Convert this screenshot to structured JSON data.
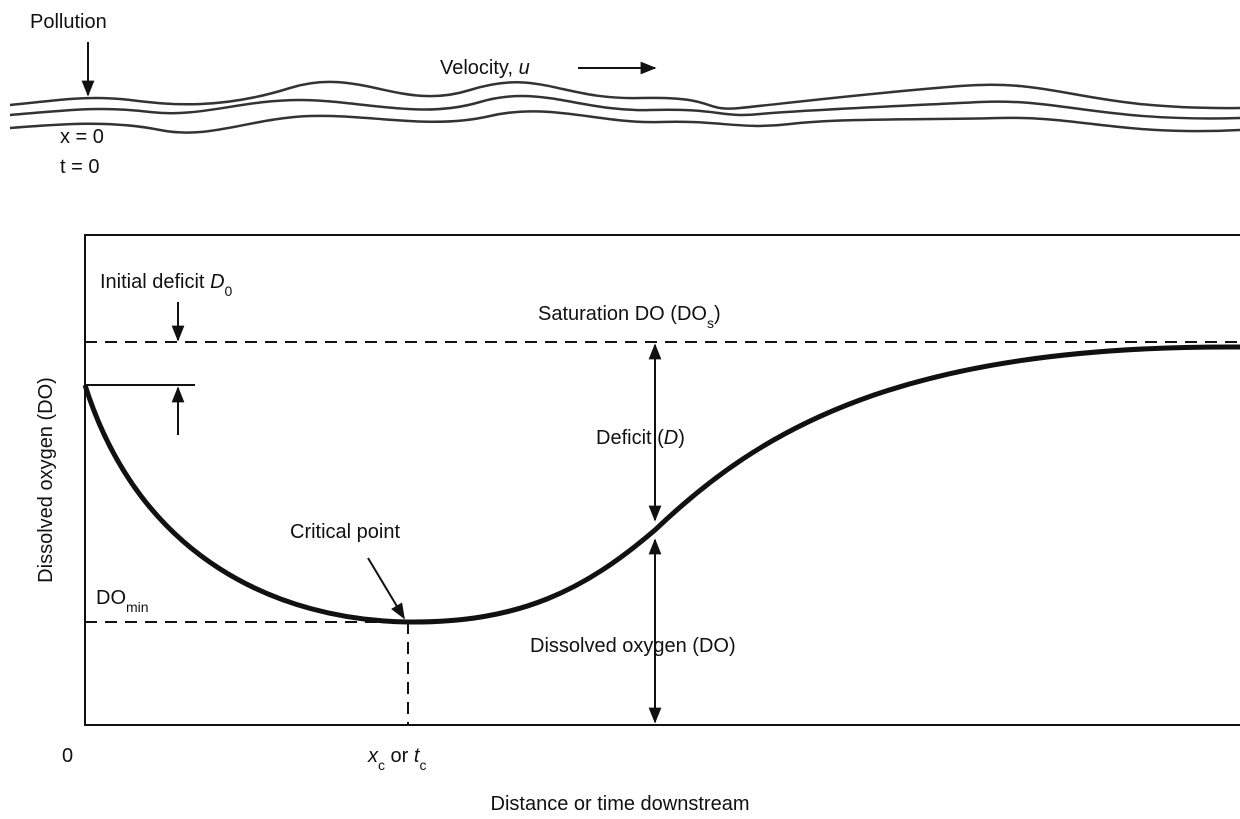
{
  "labels": {
    "pollution": "Pollution",
    "velocity": {
      "text": "Velocity, ",
      "symbol": "u"
    },
    "x0": "x = 0",
    "t0": "t = 0",
    "initial_deficit": {
      "text": "Initial deficit ",
      "symbol": "D",
      "subscript": "0"
    },
    "saturation": {
      "text": "Saturation DO (DO",
      "subscript": "s",
      "end": ")"
    },
    "deficit": {
      "text": "Deficit (",
      "symbol": "D",
      "end": ")"
    },
    "critical_point": "Critical point",
    "do_min": {
      "text": "DO",
      "subscript": "min"
    },
    "dissolved_oxygen": "Dissolved oxygen (DO)"
  },
  "axes": {
    "y_label": "Dissolved oxygen (DO)",
    "x_label": "Distance or time downstream",
    "origin": "0",
    "x_critical": {
      "x": "x",
      "x_sub": "c",
      "or": " or ",
      "t": "t",
      "t_sub": "c"
    }
  }
}
